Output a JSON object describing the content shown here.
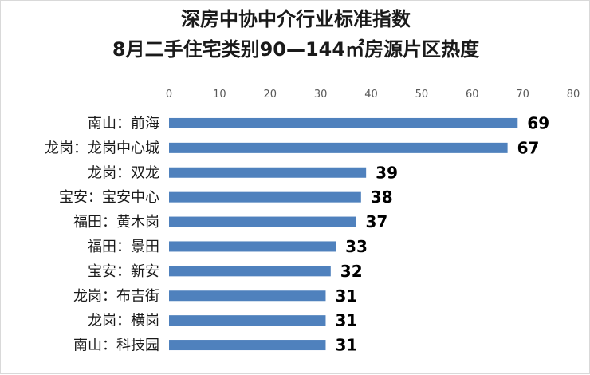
{
  "chart_data": {
    "type": "bar",
    "orientation": "horizontal",
    "title": "深房中协中介行业标准指数",
    "subtitle": "8月二手住宅类别90—144㎡房源片区热度",
    "categories": [
      "南山：前海",
      "龙岗：龙岗中心城",
      "龙岗：双龙",
      "宝安：宝安中心",
      "福田：黄木岗",
      "福田：景田",
      "宝安：新安",
      "龙岗：布吉街",
      "龙岗：横岗",
      "南山：科技园"
    ],
    "values": [
      69,
      67,
      39,
      38,
      37,
      33,
      32,
      31,
      31,
      31
    ],
    "xlim": [
      0,
      80
    ],
    "xticks": [
      0,
      10,
      20,
      30,
      40,
      50,
      60,
      70,
      80
    ],
    "axis_position": "top",
    "grid": false,
    "legend": "none",
    "data_labels": true,
    "bar_color": "#4f81bd"
  }
}
